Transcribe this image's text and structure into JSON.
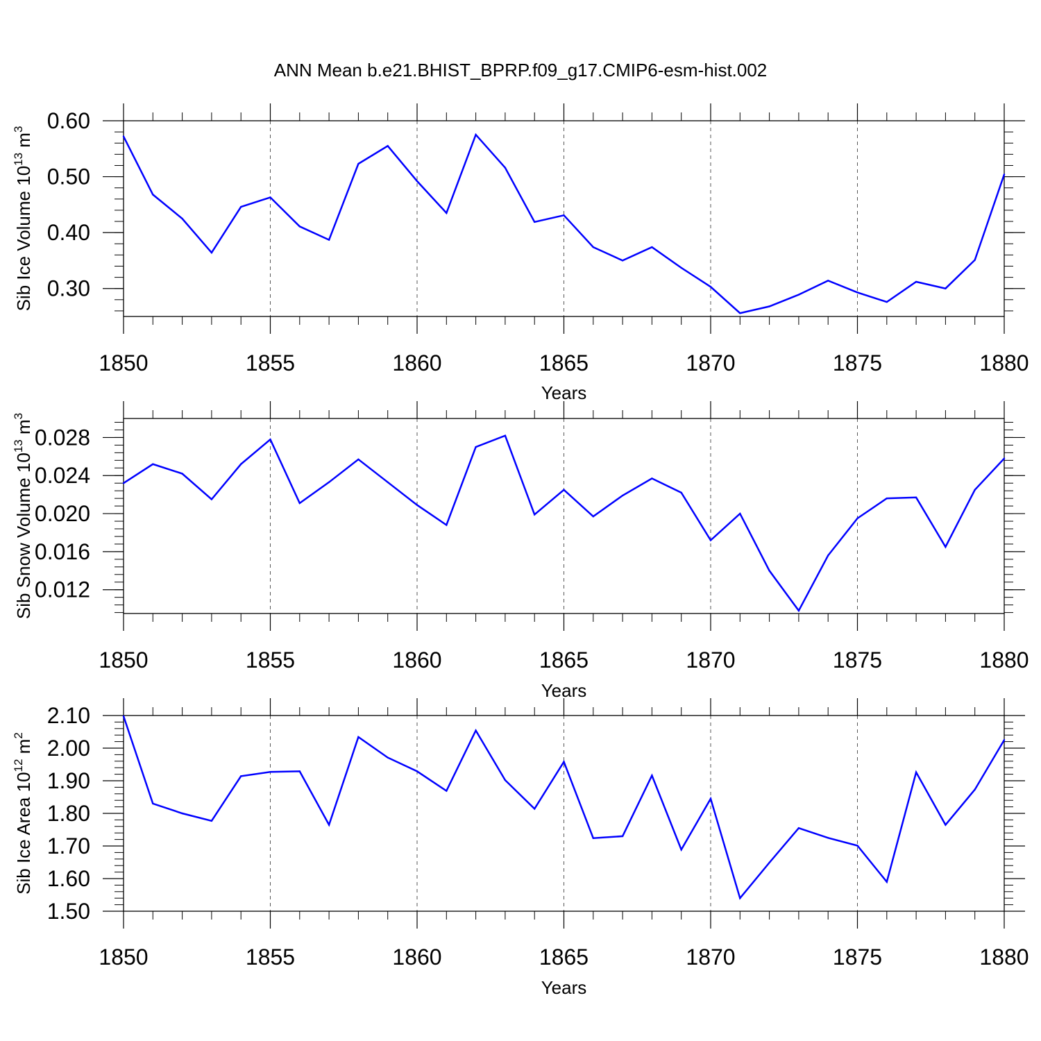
{
  "title": "ANN Mean b.e21.BHIST_BPRP.f09_g17.CMIP6-esm-hist.002",
  "line_color": "#0000ff",
  "chart_data": [
    {
      "type": "line",
      "id": "ice-volume",
      "ylabel": {
        "base": "Sib Ice Volume 10",
        "exp": "13",
        "unit": " m",
        "unit_exp": "3"
      },
      "xlabel": "Years",
      "xlim": [
        1850,
        1880
      ],
      "ylim": [
        0.25,
        0.6
      ],
      "x_ticks": [
        1850,
        1855,
        1860,
        1865,
        1870,
        1875,
        1880
      ],
      "x_tick_labels": [
        "1850",
        "1855",
        "1860",
        "1865",
        "1870",
        "1875",
        "1880"
      ],
      "y_ticks": [
        0.3,
        0.4,
        0.5,
        0.6
      ],
      "y_tick_labels": [
        "0.30",
        "0.40",
        "0.50",
        "0.60"
      ],
      "y_minor_step": 0.02,
      "gridlines": "dashed vertical at major x ticks",
      "x": [
        1850,
        1851,
        1852,
        1853,
        1854,
        1855,
        1856,
        1857,
        1858,
        1859,
        1860,
        1861,
        1862,
        1863,
        1864,
        1865,
        1866,
        1867,
        1868,
        1869,
        1870,
        1871,
        1872,
        1873,
        1874,
        1875,
        1876,
        1877,
        1878,
        1879,
        1880
      ],
      "values": [
        0.572,
        0.468,
        0.425,
        0.364,
        0.446,
        0.463,
        0.411,
        0.387,
        0.523,
        0.555,
        0.492,
        0.435,
        0.575,
        0.516,
        0.419,
        0.431,
        0.374,
        0.35,
        0.374,
        0.337,
        0.303,
        0.256,
        0.268,
        0.289,
        0.314,
        0.293,
        0.276,
        0.312,
        0.3,
        0.351,
        0.504
      ]
    },
    {
      "type": "line",
      "id": "snow-volume",
      "ylabel": {
        "base": "Sib Snow Volume 10",
        "exp": "13",
        "unit": " m",
        "unit_exp": "3"
      },
      "xlabel": "Years",
      "xlim": [
        1850,
        1880
      ],
      "ylim": [
        0.0095,
        0.03
      ],
      "x_ticks": [
        1850,
        1855,
        1860,
        1865,
        1870,
        1875,
        1880
      ],
      "x_tick_labels": [
        "1850",
        "1855",
        "1860",
        "1865",
        "1870",
        "1875",
        "1880"
      ],
      "y_ticks": [
        0.012,
        0.016,
        0.02,
        0.024,
        0.028
      ],
      "y_tick_labels": [
        "0.012",
        "0.016",
        "0.020",
        "0.024",
        "0.028"
      ],
      "y_minor_step": 0.0008,
      "gridlines": "dashed vertical at major x ticks",
      "x": [
        1850,
        1851,
        1852,
        1853,
        1854,
        1855,
        1856,
        1857,
        1858,
        1859,
        1860,
        1861,
        1862,
        1863,
        1864,
        1865,
        1866,
        1867,
        1868,
        1869,
        1870,
        1871,
        1872,
        1873,
        1874,
        1875,
        1876,
        1877,
        1878,
        1879,
        1880
      ],
      "values": [
        0.0232,
        0.0252,
        0.0242,
        0.0215,
        0.0252,
        0.0278,
        0.0211,
        0.0233,
        0.0257,
        0.0233,
        0.0209,
        0.0188,
        0.027,
        0.0282,
        0.0199,
        0.0225,
        0.0197,
        0.0219,
        0.0237,
        0.0222,
        0.0172,
        0.02,
        0.014,
        0.0098,
        0.0156,
        0.0195,
        0.0216,
        0.0217,
        0.0165,
        0.0225,
        0.0258
      ]
    },
    {
      "type": "line",
      "id": "ice-area",
      "ylabel": {
        "base": "Sib Ice Area 10",
        "exp": "12",
        "unit": " m",
        "unit_exp": "2"
      },
      "xlabel": "Years",
      "xlim": [
        1850,
        1880
      ],
      "ylim": [
        1.5,
        2.1
      ],
      "x_ticks": [
        1850,
        1855,
        1860,
        1865,
        1870,
        1875,
        1880
      ],
      "x_tick_labels": [
        "1850",
        "1855",
        "1860",
        "1865",
        "1870",
        "1875",
        "1880"
      ],
      "y_ticks": [
        1.5,
        1.6,
        1.7,
        1.8,
        1.9,
        2.0,
        2.1
      ],
      "y_tick_labels": [
        "1.50",
        "1.60",
        "1.70",
        "1.80",
        "1.90",
        "2.00",
        "2.10"
      ],
      "y_minor_step": 0.02,
      "gridlines": "dashed vertical at major x ticks",
      "x": [
        1850,
        1851,
        1852,
        1853,
        1854,
        1855,
        1856,
        1857,
        1858,
        1859,
        1860,
        1861,
        1862,
        1863,
        1864,
        1865,
        1866,
        1867,
        1868,
        1869,
        1870,
        1871,
        1872,
        1873,
        1874,
        1875,
        1876,
        1877,
        1878,
        1879,
        1880
      ],
      "values": [
        2.098,
        1.83,
        1.8,
        1.777,
        1.914,
        1.927,
        1.929,
        1.765,
        2.034,
        1.971,
        1.929,
        1.869,
        2.054,
        1.902,
        1.814,
        1.958,
        1.724,
        1.73,
        1.916,
        1.689,
        1.845,
        1.54,
        1.649,
        1.755,
        1.725,
        1.701,
        1.59,
        1.926,
        1.765,
        1.873,
        2.025
      ]
    }
  ]
}
